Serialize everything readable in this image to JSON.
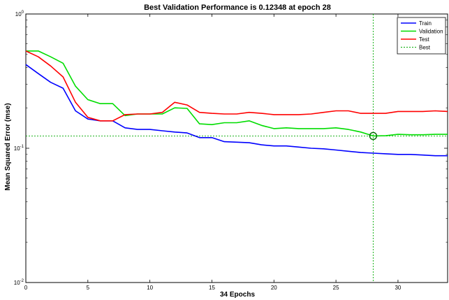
{
  "chart_data": {
    "type": "line",
    "title": "Best Validation Performance is 0.12348 at epoch 28",
    "xlabel": "34 Epochs",
    "ylabel": "Mean Squared Error  (mse)",
    "xlim": [
      0,
      34
    ],
    "ylim": [
      0.01,
      1
    ],
    "yscale": "log",
    "x_ticks": [
      0,
      5,
      10,
      15,
      20,
      25,
      30
    ],
    "y_ticks": [
      {
        "value": 0.01,
        "base": "10",
        "exp": "-2"
      },
      {
        "value": 0.1,
        "base": "10",
        "exp": "-1"
      },
      {
        "value": 1,
        "base": "10",
        "exp": "0"
      }
    ],
    "grid": false,
    "legend_position": "top-right",
    "x": [
      0,
      1,
      2,
      3,
      4,
      5,
      6,
      7,
      8,
      9,
      10,
      11,
      12,
      13,
      14,
      15,
      16,
      17,
      18,
      19,
      20,
      21,
      22,
      23,
      24,
      25,
      26,
      27,
      28,
      29,
      30,
      31,
      32,
      33,
      34
    ],
    "series": [
      {
        "name": "Train",
        "color": "#0000ff",
        "values": [
          0.42,
          0.36,
          0.31,
          0.28,
          0.19,
          0.165,
          0.16,
          0.16,
          0.142,
          0.138,
          0.138,
          0.135,
          0.132,
          0.13,
          0.12,
          0.12,
          0.112,
          0.111,
          0.11,
          0.106,
          0.104,
          0.104,
          0.102,
          0.1,
          0.099,
          0.097,
          0.095,
          0.093,
          0.092,
          0.091,
          0.09,
          0.09,
          0.089,
          0.088,
          0.088
        ]
      },
      {
        "name": "Validation",
        "color": "#00dd00",
        "values": [
          0.53,
          0.53,
          0.48,
          0.43,
          0.29,
          0.23,
          0.215,
          0.215,
          0.175,
          0.18,
          0.18,
          0.18,
          0.2,
          0.198,
          0.152,
          0.15,
          0.155,
          0.155,
          0.16,
          0.148,
          0.14,
          0.142,
          0.14,
          0.14,
          0.14,
          0.142,
          0.138,
          0.132,
          0.1235,
          0.124,
          0.127,
          0.126,
          0.126,
          0.127,
          0.127
        ]
      },
      {
        "name": "Test",
        "color": "#ff0000",
        "values": [
          0.53,
          0.48,
          0.41,
          0.34,
          0.22,
          0.17,
          0.16,
          0.16,
          0.178,
          0.18,
          0.18,
          0.185,
          0.22,
          0.21,
          0.185,
          0.182,
          0.18,
          0.18,
          0.185,
          0.182,
          0.178,
          0.178,
          0.178,
          0.18,
          0.185,
          0.19,
          0.19,
          0.182,
          0.182,
          0.182,
          0.188,
          0.188,
          0.188,
          0.19,
          0.188
        ]
      }
    ],
    "best": {
      "name": "Best",
      "color": "#00aa00",
      "epoch": 28,
      "value": 0.12348
    }
  }
}
